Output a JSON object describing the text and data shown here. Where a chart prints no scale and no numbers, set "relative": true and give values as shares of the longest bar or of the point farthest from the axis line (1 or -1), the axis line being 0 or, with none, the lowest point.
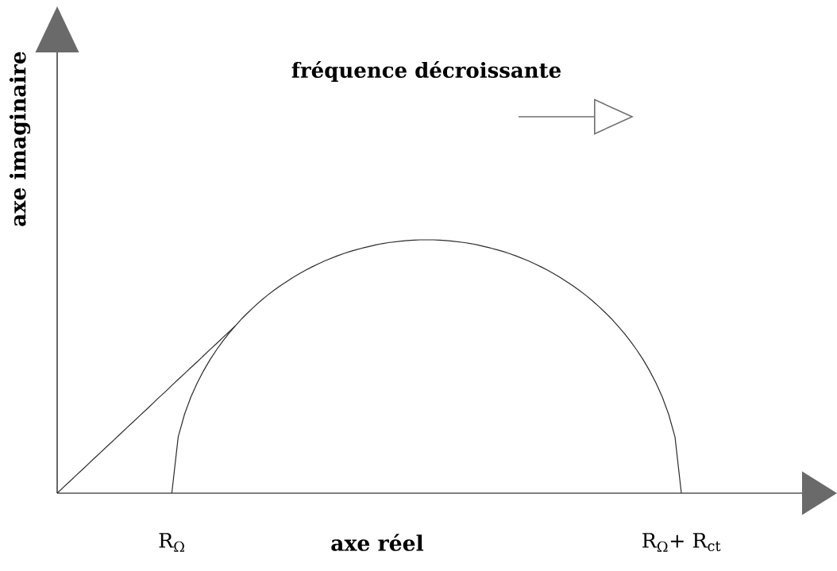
{
  "chart_data": {
    "type": "line",
    "xlabel": "axe réel",
    "ylabel": "axe imaginaire",
    "relative": true,
    "annotations": [
      "fréquence décroissante"
    ],
    "categories": [
      null,
      null,
      null,
      null,
      null,
      null,
      null,
      null,
      null,
      null,
      null,
      null,
      null,
      null,
      null,
      null,
      null,
      null,
      "R$_{Ω}$",
      null,
      null,
      null,
      null,
      null,
      null,
      null,
      null,
      null,
      null,
      null,
      null,
      null,
      null,
      null,
      null,
      null,
      null,
      null,
      null,
      null,
      null,
      null,
      null,
      null,
      null,
      null,
      null,
      null,
      null,
      null,
      null,
      null,
      null,
      null,
      null,
      null,
      null,
      null,
      null,
      null,
      null,
      null,
      null,
      null,
      null,
      null,
      null,
      null,
      null,
      null,
      null,
      null,
      null,
      null,
      null,
      null,
      null,
      null,
      null,
      null,
      null,
      null,
      null,
      null,
      null,
      null,
      null,
      null,
      null,
      null,
      null,
      null,
      null,
      null,
      null,
      null,
      null,
      null,
      "R$_{Ω}$+ R$_{ct}$"
    ],
    "series": [
      {
        "color": "#2b2b2b",
        "values": [
          null,
          null,
          null,
          null,
          null,
          null,
          null,
          null,
          null,
          null,
          null,
          null,
          null,
          null,
          null,
          null,
          null,
          null,
          0,
          0.222,
          0.312,
          0.38,
          0.436,
          0.484,
          0.527,
          0.565,
          0.6,
          0.632,
          0.661,
          0.689,
          0.714,
          0.738,
          0.76,
          0.781,
          0.8,
          0.818,
          0.835,
          0.851,
          0.866,
          0.88,
          0.893,
          0.905,
          0.917,
          0.927,
          0.937,
          0.946,
          0.954,
          0.961,
          0.968,
          0.974,
          0.98,
          0.985,
          0.989,
          0.992,
          0.995,
          0.997,
          0.999,
          1,
          1,
          1,
          0.999,
          0.997,
          0.995,
          0.992,
          0.989,
          0.985,
          0.98,
          0.974,
          0.968,
          0.961,
          0.954,
          0.946,
          0.937,
          0.927,
          0.917,
          0.905,
          0.893,
          0.88,
          0.866,
          0.851,
          0.835,
          0.818,
          0.8,
          0.781,
          0.76,
          0.738,
          0.714,
          0.689,
          0.661,
          0.632,
          0.6,
          0.565,
          0.527,
          0.484,
          0.436,
          0.38,
          0.312,
          0.222,
          0
        ]
      },
      {
        "color": "#2b2b2b",
        "values": [
          0,
          0.024,
          0.047,
          0.071,
          0.094,
          0.118,
          0.142,
          0.165,
          0.189,
          0.212,
          0.236,
          0.26,
          0.283,
          0.307,
          0.33,
          0.354,
          0.378,
          0.401,
          0.425,
          0.449,
          0.472,
          0.496,
          0.519,
          0.543,
          0.567,
          0.59,
          0.614,
          0.637,
          0.661,
          null,
          null,
          null,
          null,
          null,
          null,
          null,
          null,
          null,
          null,
          null,
          null,
          null,
          null,
          null,
          null,
          null,
          null,
          null,
          null,
          null,
          null,
          null,
          null,
          null,
          null,
          null,
          null,
          null,
          null,
          null,
          null,
          null,
          null,
          null,
          null,
          null,
          null,
          null,
          null,
          null,
          null,
          null,
          null,
          null,
          null,
          null,
          null,
          null,
          null,
          null,
          null,
          null,
          null,
          null,
          null,
          null,
          null,
          null,
          null,
          null,
          null,
          null,
          null,
          null,
          null,
          null,
          null,
          null,
          null
        ]
      }
    ]
  }
}
